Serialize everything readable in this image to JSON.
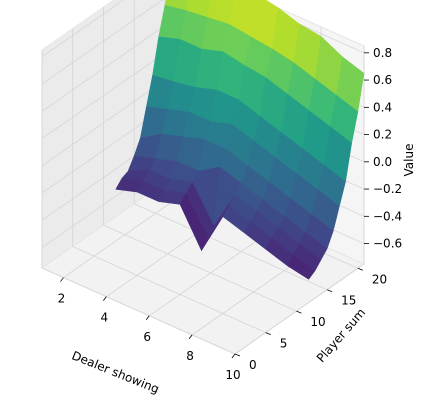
{
  "chart_data": {
    "type": "surface3d",
    "title": "",
    "xlabel": "Dealer showing",
    "ylabel": "Player sum",
    "zlabel": "Value",
    "xlim": [
      1,
      10
    ],
    "ylim": [
      0,
      21
    ],
    "zlim": [
      -0.75,
      0.85
    ],
    "x_ticks": [
      "2",
      "4",
      "6",
      "8",
      "10"
    ],
    "y_ticks": [
      "0",
      "5",
      "10",
      "15",
      "20"
    ],
    "z_ticks": [
      "−0.6",
      "−0.4",
      "−0.2",
      "0.0",
      "0.2",
      "0.4",
      "0.6",
      "0.8"
    ],
    "colormap": "viridis",
    "grid": true,
    "dealer_showing": [
      1,
      2,
      3,
      4,
      5,
      6,
      7,
      8,
      9,
      10
    ],
    "player_sum": [
      12,
      13,
      14,
      15,
      16,
      17,
      18,
      19,
      20,
      21
    ],
    "value": [
      [
        -0.55,
        -0.5,
        -0.5,
        -0.45,
        -0.72,
        -0.4,
        -0.45,
        -0.5,
        -0.55,
        -0.58
      ],
      [
        -0.5,
        -0.45,
        -0.45,
        -0.4,
        -0.65,
        -0.35,
        -0.4,
        -0.45,
        -0.5,
        -0.55
      ],
      [
        -0.48,
        -0.4,
        -0.4,
        -0.35,
        -0.6,
        -0.3,
        -0.35,
        -0.4,
        -0.45,
        -0.5
      ],
      [
        -0.4,
        -0.35,
        -0.3,
        -0.3,
        -0.2,
        -0.25,
        -0.3,
        -0.35,
        -0.4,
        -0.45
      ],
      [
        -0.3,
        -0.2,
        -0.15,
        -0.1,
        -0.1,
        -0.15,
        -0.2,
        -0.25,
        -0.3,
        -0.35
      ],
      [
        -0.1,
        -0.05,
        0.0,
        0.0,
        0.05,
        0.0,
        -0.05,
        -0.1,
        -0.15,
        -0.2
      ],
      [
        0.1,
        0.12,
        0.15,
        0.2,
        0.2,
        0.15,
        0.1,
        0.05,
        0.0,
        -0.05
      ],
      [
        0.35,
        0.4,
        0.4,
        0.45,
        0.42,
        0.4,
        0.35,
        0.3,
        0.25,
        0.2
      ],
      [
        0.55,
        0.58,
        0.6,
        0.62,
        0.6,
        0.58,
        0.55,
        0.5,
        0.45,
        0.4
      ],
      [
        0.7,
        0.75,
        0.8,
        0.82,
        0.88,
        0.85,
        0.8,
        0.78,
        0.7,
        0.65
      ]
    ]
  }
}
